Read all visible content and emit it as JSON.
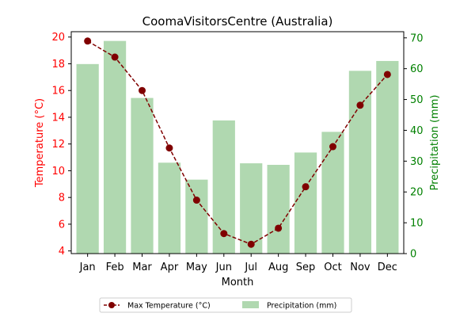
{
  "chart_data": {
    "type": "bar",
    "title": "CoomaVisitorsCentre (Australia)",
    "xlabel": "Month",
    "ylabel_left": "Temperature (°C)",
    "ylabel_right": "Precipitation (mm)",
    "categories": [
      "Jan",
      "Feb",
      "Mar",
      "Apr",
      "May",
      "Jun",
      "Jul",
      "Aug",
      "Sep",
      "Oct",
      "Nov",
      "Dec"
    ],
    "left_axis": {
      "ylim": [
        3.8,
        20.4
      ],
      "ticks": [
        4,
        6,
        8,
        10,
        12,
        14,
        16,
        18,
        20
      ]
    },
    "right_axis": {
      "ylim": [
        0,
        72
      ],
      "ticks": [
        0,
        10,
        20,
        30,
        40,
        50,
        60,
        70
      ]
    },
    "series": [
      {
        "name": "Max Temperature (°C)",
        "type": "line",
        "axis": "left",
        "color": "#800000",
        "values": [
          19.7,
          18.5,
          16.0,
          11.7,
          7.8,
          5.3,
          4.5,
          5.7,
          8.8,
          11.8,
          14.9,
          17.2
        ]
      },
      {
        "name": "Precipitation (mm)",
        "type": "bar",
        "axis": "right",
        "color": "#b0d8b0",
        "values": [
          61.5,
          69.0,
          50.5,
          29.5,
          24.0,
          43.2,
          29.3,
          28.8,
          32.8,
          39.5,
          59.3,
          62.5
        ]
      }
    ],
    "left_axis_color": "#ff0000",
    "right_axis_color": "#008000",
    "grid": false,
    "legend": {
      "placement": "bottom-center"
    }
  }
}
